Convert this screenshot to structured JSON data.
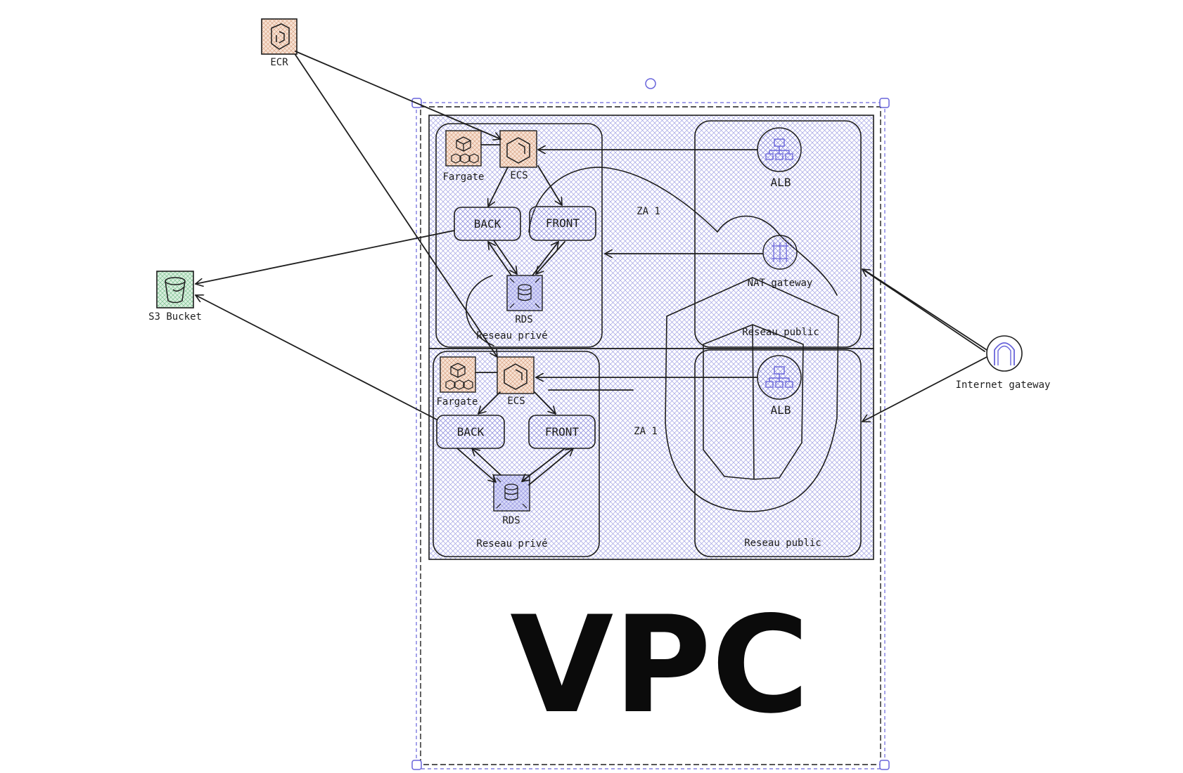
{
  "canvas": {
    "vpc_label": "VPC",
    "colors": {
      "hatch": "#8a8adc",
      "selection": "#6965db",
      "ecs_fill": "#f7e1d3",
      "rds_fill": "#d6d8f7",
      "s3_fill": "#d9f0df",
      "stroke": "#1e1e1e"
    }
  },
  "nodes": {
    "ecr": {
      "label": "ECR",
      "icon": "ecr-icon"
    },
    "s3": {
      "label": "S3 Bucket",
      "icon": "s3-bucket-icon"
    },
    "igw": {
      "label": "Internet gateway",
      "icon": "internet-gateway-icon"
    },
    "zone1": {
      "az_label": "ZA 1",
      "private_label": "Reseau privé",
      "public_label": "Reseau public",
      "fargate": "Fargate",
      "ecs": "ECS",
      "back": "BACK",
      "front": "FRONT",
      "rds": "RDS",
      "alb": "ALB",
      "nat": "NAT gateway"
    },
    "zone2": {
      "az_label": "ZA 1",
      "private_label": "Reseau privé",
      "public_label": "Reseau public",
      "fargate": "Fargate",
      "ecs": "ECS",
      "back": "BACK",
      "front": "FRONT",
      "rds": "RDS",
      "alb": "ALB"
    }
  }
}
